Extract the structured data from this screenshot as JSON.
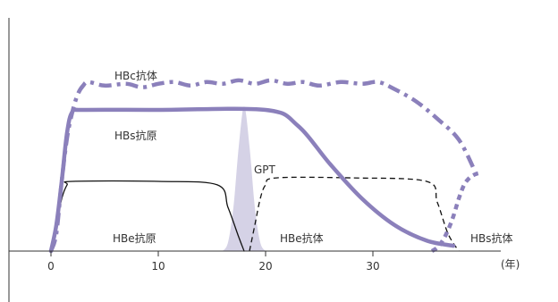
{
  "chart_data": {
    "type": "line",
    "xlabel": "(年)",
    "xlim": [
      0,
      40
    ],
    "x_ticks": [
      0,
      10,
      20,
      30
    ],
    "ylim": [
      0,
      1
    ],
    "grid": false,
    "series": [
      {
        "name": "HBc抗体",
        "style": "dash-dot",
        "color": "#8b80bb",
        "x": [
          0,
          0.5,
          1,
          1.5,
          2,
          2.5,
          3,
          3.5,
          5,
          7,
          8.5,
          10,
          11.5,
          13,
          14.5,
          16,
          17.5,
          19,
          20.5,
          22,
          23.5,
          25,
          27,
          29,
          30.5,
          32,
          34,
          36,
          38,
          39.5
        ],
        "y": [
          0.0,
          0.1,
          0.4,
          0.65,
          0.8,
          0.9,
          0.95,
          0.97,
          0.95,
          0.96,
          0.94,
          0.96,
          0.97,
          0.95,
          0.97,
          0.96,
          0.98,
          0.96,
          0.98,
          0.96,
          0.97,
          0.95,
          0.97,
          0.96,
          0.97,
          0.93,
          0.86,
          0.76,
          0.64,
          0.46
        ]
      },
      {
        "name": "HBs抗原",
        "style": "solid-thick",
        "color": "#8b80bb",
        "x": [
          0,
          0.5,
          1,
          1.5,
          2,
          3,
          10,
          20,
          23,
          26,
          29,
          32,
          35,
          37.5
        ],
        "y": [
          0.0,
          0.15,
          0.4,
          0.68,
          0.8,
          0.81,
          0.81,
          0.81,
          0.72,
          0.5,
          0.3,
          0.15,
          0.06,
          0.03
        ]
      },
      {
        "name": "HBe抗原",
        "style": "solid-thin",
        "color": "#111111",
        "x": [
          0,
          0.5,
          1,
          1.5,
          2,
          10,
          15.5,
          16.5,
          17.5,
          18
        ],
        "y": [
          0.0,
          0.15,
          0.3,
          0.38,
          0.4,
          0.4,
          0.38,
          0.25,
          0.08,
          0.0
        ]
      },
      {
        "name": "HBe抗体",
        "style": "dashed-thin",
        "color": "#111111",
        "x": [
          18.5,
          19,
          19.5,
          20,
          21,
          28,
          35,
          36,
          37,
          38
        ],
        "y": [
          0.0,
          0.15,
          0.3,
          0.38,
          0.42,
          0.42,
          0.4,
          0.28,
          0.1,
          0.0
        ]
      },
      {
        "name": "HBs抗体",
        "style": "dotted-thick",
        "color": "#8b80bb",
        "x": [
          35.5,
          36,
          36.5,
          37,
          37.5,
          38,
          38.5,
          39,
          39.5,
          40
        ],
        "y": [
          0.0,
          0.02,
          0.06,
          0.12,
          0.2,
          0.3,
          0.38,
          0.42,
          0.44,
          0.45
        ]
      },
      {
        "name": "GPT",
        "style": "filled-peak",
        "color": "#d5d2e6",
        "x": [
          16.0,
          16.5,
          17.0,
          17.5,
          18.0,
          18.5,
          19.0,
          19.5,
          20.0
        ],
        "y": [
          0.0,
          0.05,
          0.25,
          0.6,
          0.83,
          0.6,
          0.25,
          0.05,
          0.0
        ]
      }
    ]
  }
}
